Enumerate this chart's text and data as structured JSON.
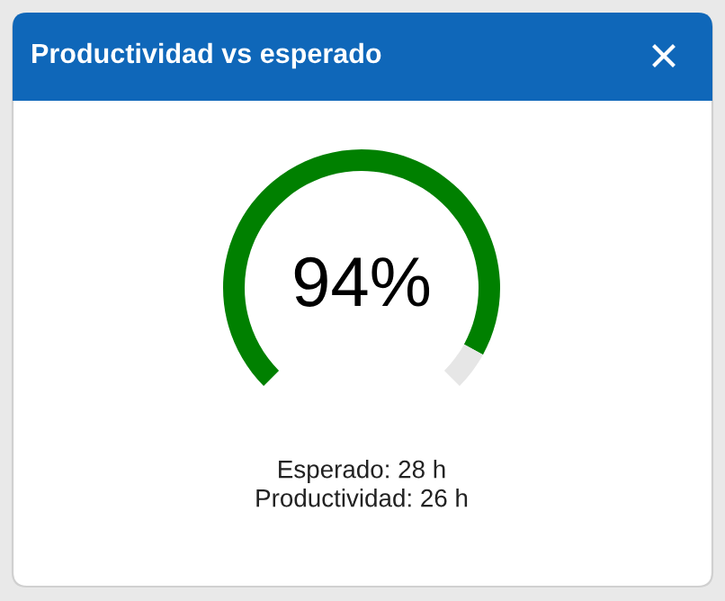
{
  "chart_data": {
    "type": "donut",
    "title": "Productividad vs esperado",
    "categories": [
      null,
      null
    ],
    "values": [
      94,
      6
    ],
    "colors": [
      "#008000",
      "#e6e6e6"
    ],
    "value_labels": [
      "94%",
      null
    ],
    "annotations": [
      "Esperado: 28 h",
      "Productividad: 26 h"
    ]
  }
}
